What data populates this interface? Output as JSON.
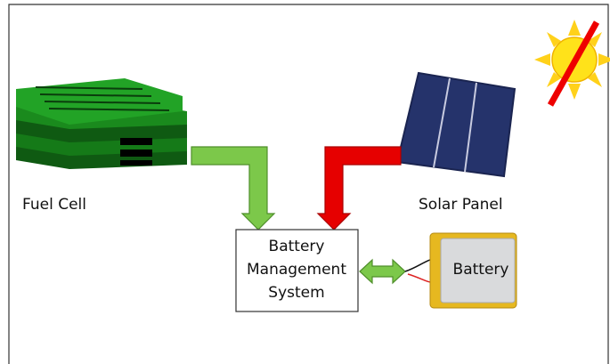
{
  "nodes": [
    {
      "label": "Fuel Cell"
    },
    {
      "label": "Solar Panel"
    },
    {
      "label": [
        "Battery",
        "Management",
        "System"
      ]
    },
    {
      "label": "Battery"
    }
  ]
}
